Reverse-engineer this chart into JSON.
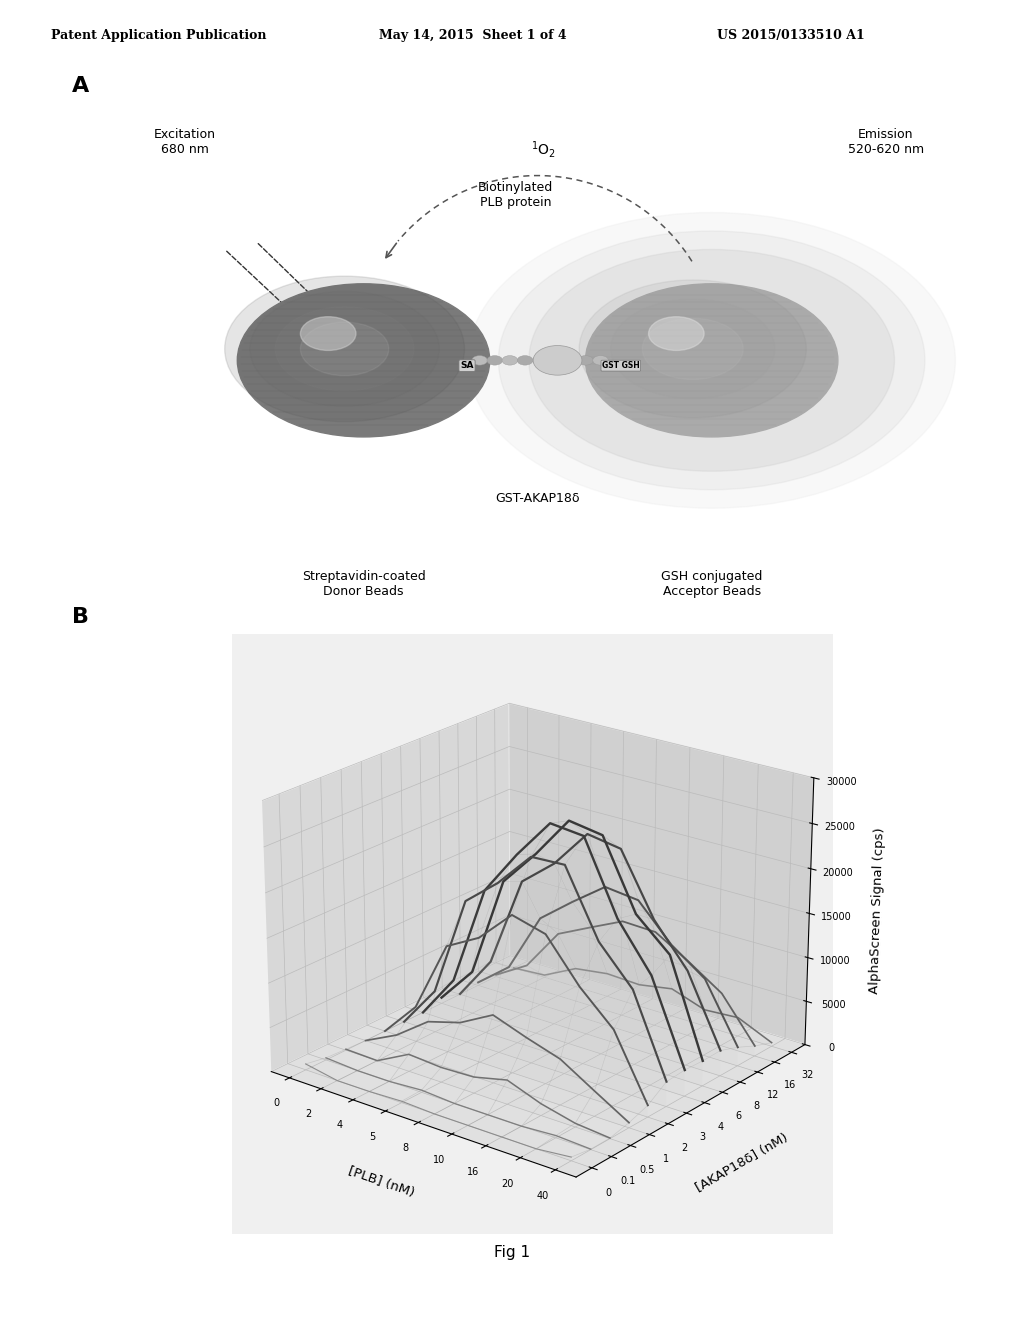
{
  "background_color": "#ffffff",
  "header_left": "Patent Application Publication",
  "header_mid": "May 14, 2015  Sheet 1 of 4",
  "header_right": "US 2015/0133510 A1",
  "panel_A_label": "A",
  "panel_B_label": "B",
  "fig_label": "Fig 1",
  "panel_A": {
    "excitation_text": "Excitation\n680 nm",
    "emission_text": "Emission\n520-620 nm",
    "o2_text": "$^1$O$_2$",
    "biotinylated_text": "Biotinylated\nPLB protein",
    "gst_akap_text": "GST-AKAP18δ",
    "gst_gsh_text": "GST GSH",
    "sa_text": "SA",
    "donor_text": "Streptavidin-coated\nDonor Beads",
    "acceptor_text": "GSH conjugated\nAcceptor Beads"
  },
  "panel_B": {
    "ylabel": "AlphaScreen Signal (cps)",
    "xlabel": "[PLB] (nM)",
    "zlabel": "[AKAP18δ] (nM)",
    "plb_values": [
      0,
      2,
      4,
      5,
      8,
      10,
      16,
      20,
      40
    ],
    "akap_values": [
      0,
      0.1,
      0.5,
      1,
      2,
      3,
      4,
      6,
      8,
      12,
      16,
      32
    ],
    "z_ticks": [
      0,
      5000,
      10000,
      15000,
      20000,
      25000,
      30000
    ],
    "plb_tick_labels": [
      "0",
      "2",
      "4",
      "5",
      "8",
      "10",
      "16",
      "20",
      "40"
    ],
    "akap_tick_labels": [
      "0",
      "0.1",
      "0.5",
      "1",
      "2",
      "3",
      "4",
      "6",
      "8",
      "12",
      "16",
      "32"
    ]
  }
}
